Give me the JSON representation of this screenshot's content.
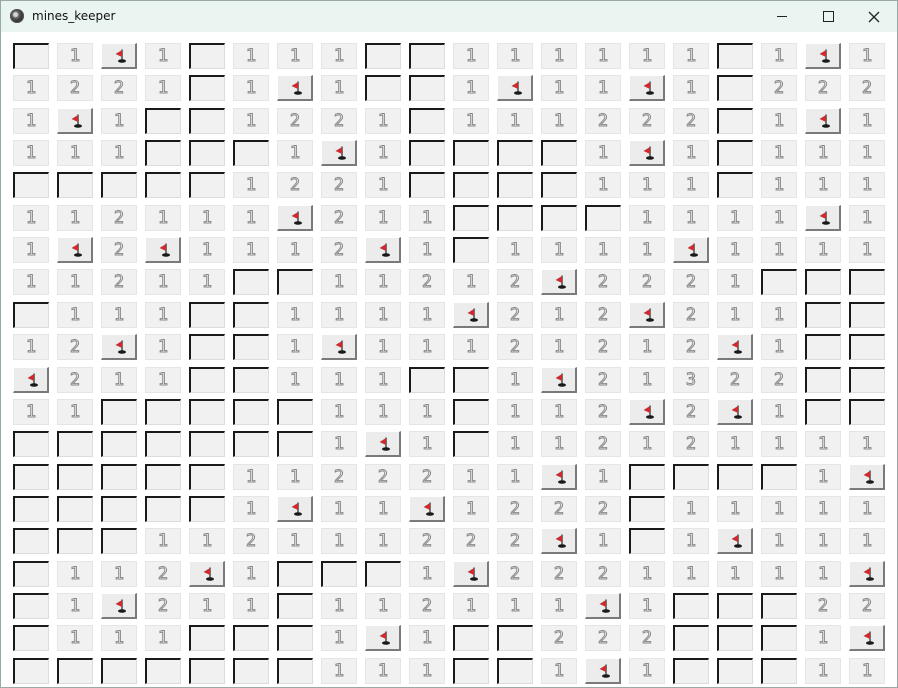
{
  "window": {
    "title": "mines_keeper"
  },
  "colors": {
    "titlebar": "#eaf5f2",
    "flag": "#d9262b",
    "cell": "#f1f1f1",
    "number_outline": "#888888"
  },
  "icons": {
    "app": "mine-icon",
    "flag": "flag-icon"
  },
  "legend": {
    "U": "unrevealed",
    "F": "flag",
    "0": "revealed-empty",
    "1-3": "revealed-number"
  },
  "board": {
    "rows": 20,
    "cols": 20,
    "grid": [
      [
        "U",
        "1",
        "F",
        "1",
        "U",
        "1",
        "1",
        "1",
        "U",
        "U",
        "1",
        "1",
        "1",
        "1",
        "1",
        "1",
        "U",
        "1",
        "F",
        "1"
      ],
      [
        "1",
        "2",
        "2",
        "1",
        "U",
        "1",
        "F",
        "1",
        "U",
        "U",
        "1",
        "F",
        "1",
        "1",
        "F",
        "1",
        "U",
        "2",
        "2",
        "2"
      ],
      [
        "1",
        "F",
        "1",
        "U",
        "U",
        "1",
        "2",
        "2",
        "1",
        "U",
        "1",
        "1",
        "1",
        "2",
        "2",
        "2",
        "U",
        "1",
        "F",
        "1"
      ],
      [
        "1",
        "1",
        "1",
        "U",
        "U",
        "U",
        "1",
        "F",
        "1",
        "U",
        "U",
        "U",
        "U",
        "1",
        "F",
        "1",
        "U",
        "1",
        "1",
        "1"
      ],
      [
        "U",
        "U",
        "U",
        "U",
        "U",
        "1",
        "2",
        "2",
        "1",
        "U",
        "U",
        "U",
        "U",
        "1",
        "1",
        "1",
        "U",
        "1",
        "1",
        "1"
      ],
      [
        "1",
        "1",
        "2",
        "1",
        "1",
        "1",
        "F",
        "2",
        "1",
        "1",
        "U",
        "U",
        "U",
        "U",
        "1",
        "1",
        "1",
        "1",
        "F",
        "1"
      ],
      [
        "1",
        "F",
        "2",
        "F",
        "1",
        "1",
        "1",
        "2",
        "F",
        "1",
        "U",
        "1",
        "1",
        "1",
        "1",
        "F",
        "1",
        "1",
        "1",
        "1"
      ],
      [
        "1",
        "1",
        "2",
        "1",
        "1",
        "U",
        "U",
        "1",
        "1",
        "2",
        "1",
        "2",
        "F",
        "2",
        "2",
        "2",
        "1",
        "U",
        "U",
        "U"
      ],
      [
        "U",
        "1",
        "1",
        "1",
        "U",
        "U",
        "1",
        "1",
        "1",
        "1",
        "F",
        "2",
        "1",
        "2",
        "F",
        "2",
        "1",
        "1",
        "U",
        "U"
      ],
      [
        "1",
        "2",
        "F",
        "1",
        "U",
        "U",
        "1",
        "F",
        "1",
        "1",
        "1",
        "2",
        "1",
        "2",
        "1",
        "2",
        "F",
        "1",
        "U",
        "U"
      ],
      [
        "F",
        "2",
        "1",
        "1",
        "U",
        "U",
        "1",
        "1",
        "1",
        "U",
        "U",
        "1",
        "F",
        "2",
        "1",
        "3",
        "2",
        "2",
        "U",
        "U"
      ],
      [
        "1",
        "1",
        "U",
        "U",
        "U",
        "U",
        "U",
        "1",
        "1",
        "1",
        "U",
        "1",
        "1",
        "2",
        "F",
        "2",
        "F",
        "1",
        "U",
        "U"
      ],
      [
        "U",
        "U",
        "U",
        "U",
        "U",
        "U",
        "U",
        "1",
        "F",
        "1",
        "U",
        "1",
        "1",
        "2",
        "1",
        "2",
        "1",
        "1",
        "1",
        "1"
      ],
      [
        "U",
        "U",
        "U",
        "U",
        "U",
        "1",
        "1",
        "2",
        "2",
        "2",
        "1",
        "1",
        "F",
        "1",
        "U",
        "U",
        "U",
        "U",
        "1",
        "F"
      ],
      [
        "U",
        "U",
        "U",
        "U",
        "U",
        "1",
        "F",
        "1",
        "1",
        "F",
        "1",
        "2",
        "2",
        "2",
        "U",
        "1",
        "1",
        "1",
        "1",
        "1"
      ],
      [
        "U",
        "U",
        "U",
        "1",
        "1",
        "2",
        "1",
        "1",
        "1",
        "2",
        "2",
        "2",
        "F",
        "1",
        "U",
        "1",
        "F",
        "1",
        "1",
        "1"
      ],
      [
        "U",
        "1",
        "1",
        "2",
        "F",
        "1",
        "U",
        "U",
        "U",
        "1",
        "F",
        "2",
        "2",
        "2",
        "1",
        "1",
        "1",
        "1",
        "1",
        "F"
      ],
      [
        "U",
        "1",
        "F",
        "2",
        "1",
        "1",
        "U",
        "1",
        "1",
        "2",
        "1",
        "1",
        "1",
        "F",
        "1",
        "U",
        "U",
        "U",
        "2",
        "2"
      ],
      [
        "U",
        "1",
        "1",
        "1",
        "U",
        "U",
        "U",
        "1",
        "F",
        "1",
        "U",
        "U",
        "2",
        "2",
        "2",
        "U",
        "U",
        "U",
        "1",
        "F"
      ],
      [
        "U",
        "U",
        "U",
        "U",
        "U",
        "U",
        "U",
        "1",
        "1",
        "1",
        "U",
        "U",
        "1",
        "F",
        "1",
        "U",
        "U",
        "U",
        "1",
        "1"
      ]
    ]
  }
}
